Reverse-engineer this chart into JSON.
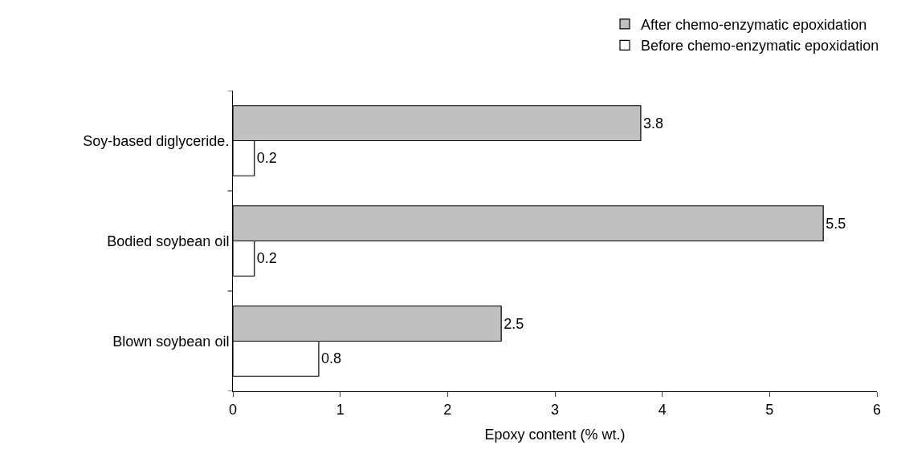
{
  "chart_data": {
    "type": "bar",
    "orientation": "horizontal",
    "xlabel": "Epoxy content (% wt.)",
    "categories": [
      "Soy-based diglyceride.",
      "Bodied soybean oil",
      "Blown soybean oil"
    ],
    "series": [
      {
        "name": "After chemo-enzymatic epoxidation",
        "color": "#c0c0c0",
        "values": [
          3.8,
          5.5,
          2.5
        ]
      },
      {
        "name": "Before chemo-enzymatic epoxidation",
        "color": "#ffffff",
        "values": [
          0.2,
          0.2,
          0.8
        ]
      }
    ],
    "xlim": [
      0,
      6
    ],
    "xticks": [
      0,
      1,
      2,
      3,
      4,
      5,
      6
    ],
    "data_labels": true,
    "legend": "top right"
  }
}
